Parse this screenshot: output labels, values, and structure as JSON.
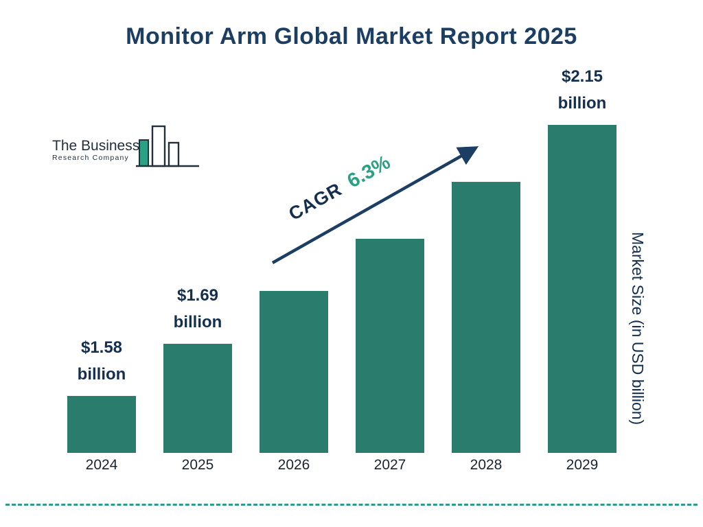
{
  "title": "Monitor Arm Global Market Report 2025",
  "logo": {
    "line1": "The Business",
    "line2": "Research Company"
  },
  "cagr": {
    "label": "CAGR",
    "value": "6.3%"
  },
  "ylabel": "Market Size (in USD billion)",
  "colors": {
    "bar_teal": "#2a7d6c",
    "title_navy": "#1c3e63",
    "cagr_green": "#2aa183",
    "dash_teal": "#2b9c8e"
  },
  "chart_data": {
    "type": "bar",
    "title": "Monitor Arm Global Market Report 2025",
    "categories": [
      "2024",
      "2025",
      "2026",
      "2027",
      "2028",
      "2029"
    ],
    "values": [
      1.58,
      1.69,
      1.8,
      1.91,
      2.03,
      2.15
    ],
    "value_labels": [
      "$1.58 billion",
      "$1.69 billion",
      "",
      "",
      "",
      "$2.15 billion"
    ],
    "xlabel": "",
    "ylabel": "Market Size (in USD billion)",
    "ylim": [
      1.46,
      2.2
    ],
    "bar_color": "#2a7d6c",
    "annotation": "CAGR 6.3%",
    "legend": "none",
    "grid": false
  }
}
